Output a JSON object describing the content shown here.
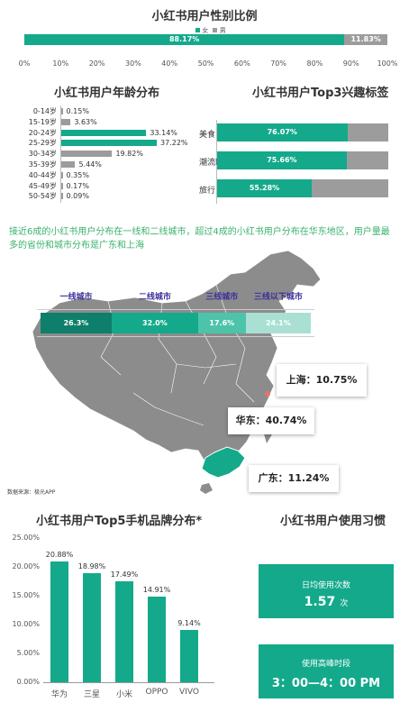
{
  "gender": {
    "title": "小红书用户性别比例",
    "legend": [
      "女",
      "男"
    ],
    "female_pct": 88.17,
    "male_pct": 11.83,
    "female_label": "88.17%",
    "male_label": "11.83%",
    "ticks": [
      "0%",
      "10%",
      "20%",
      "30%",
      "40%",
      "50%",
      "60%",
      "70%",
      "80%",
      "90%",
      "100%"
    ]
  },
  "age": {
    "title": "小红书用户年龄分布",
    "categories": [
      "0-14岁",
      "15-19岁",
      "20-24岁",
      "25-29岁",
      "30-34岁",
      "35-39岁",
      "40-44岁",
      "45-49岁",
      "50-54岁"
    ],
    "values": [
      0.15,
      3.63,
      33.14,
      37.22,
      19.82,
      5.44,
      0.35,
      0.17,
      0.09
    ],
    "labels": [
      "0.15%",
      "3.63%",
      "33.14%",
      "37.22%",
      "19.82%",
      "5.44%",
      "0.35%",
      "0.17%",
      "0.09%"
    ]
  },
  "interests": {
    "title": "小红书用户Top3兴趣标签",
    "categories": [
      "美食",
      "潮流时尚",
      "旅行"
    ],
    "values": [
      76.07,
      75.66,
      55.28
    ],
    "labels": [
      "76.07%",
      "75.66%",
      "55.28%"
    ]
  },
  "region": {
    "description": "接近6成的小红书用户分布在一线和二线城市，超过4成的小红书用户分布在华东地区，用户量最多的省份和城市分布是广东和上海",
    "city_tiers": [
      "一线城市",
      "二线城市",
      "三线城市",
      "三线以下城市"
    ],
    "tier_values": [
      26.3,
      32.0,
      17.6,
      24.1
    ],
    "tier_labels": [
      "26.3%",
      "32.0%",
      "17.6%",
      "24.1%"
    ],
    "callouts": {
      "shanghai": "上海：10.75%",
      "huadong": "华东：40.74%",
      "guangdong": "广东：11.24%"
    },
    "source": "数据来源：极光APP"
  },
  "brands": {
    "title": "小红书用户Top5手机品牌分布*",
    "categories": [
      "华为",
      "三星",
      "小米",
      "OPPO",
      "VIVO"
    ],
    "values": [
      20.88,
      18.98,
      17.49,
      14.91,
      9.14
    ],
    "labels": [
      "20.88%",
      "18.98%",
      "17.49%",
      "14.91%",
      "9.14%"
    ],
    "yticks": [
      "25.00%",
      "20.00%",
      "15.00%",
      "10.00%",
      "5.00%",
      "0.00%"
    ]
  },
  "habits": {
    "title": "小红书用户使用习惯",
    "daily_label": "日均使用次数",
    "daily_value": "1.57",
    "daily_unit": "次",
    "peak_label": "使用高峰时段",
    "peak_value": "3：00—4：00 PM"
  },
  "chart_data": [
    {
      "type": "bar",
      "title": "小红书用户性别比例",
      "categories": [
        "女",
        "男"
      ],
      "values": [
        88.17,
        11.83
      ],
      "xlim": [
        0,
        100
      ]
    },
    {
      "type": "bar",
      "title": "小红书用户年龄分布",
      "categories": [
        "0-14岁",
        "15-19岁",
        "20-24岁",
        "25-29岁",
        "30-34岁",
        "35-39岁",
        "40-44岁",
        "45-49岁",
        "50-54岁"
      ],
      "values": [
        0.15,
        3.63,
        33.14,
        37.22,
        19.82,
        5.44,
        0.35,
        0.17,
        0.09
      ]
    },
    {
      "type": "bar",
      "title": "小红书用户Top3兴趣标签",
      "categories": [
        "美食",
        "潮流时尚",
        "旅行"
      ],
      "values": [
        76.07,
        75.66,
        55.28
      ],
      "xlim": [
        0,
        100
      ]
    },
    {
      "type": "bar",
      "categories": [
        "一线城市",
        "二线城市",
        "三线城市",
        "三线以下城市"
      ],
      "values": [
        26.3,
        32.0,
        17.6,
        24.1
      ]
    },
    {
      "type": "bar",
      "title": "小红书用户Top5手机品牌分布*",
      "categories": [
        "华为",
        "三星",
        "小米",
        "OPPO",
        "VIVO"
      ],
      "values": [
        20.88,
        18.98,
        17.49,
        14.91,
        9.14
      ],
      "ylim": [
        0,
        25
      ]
    }
  ],
  "colors": {
    "teal": "#14a98b",
    "grey": "#9c9c9c",
    "map": "#8c8c8c",
    "guangdong": "#14a98b",
    "tier1": "#0e7f6a",
    "tier2": "#14a98b",
    "tier3": "#4dc3a9",
    "tier4": "#a9e0d3",
    "desc": "#3ab26c"
  }
}
